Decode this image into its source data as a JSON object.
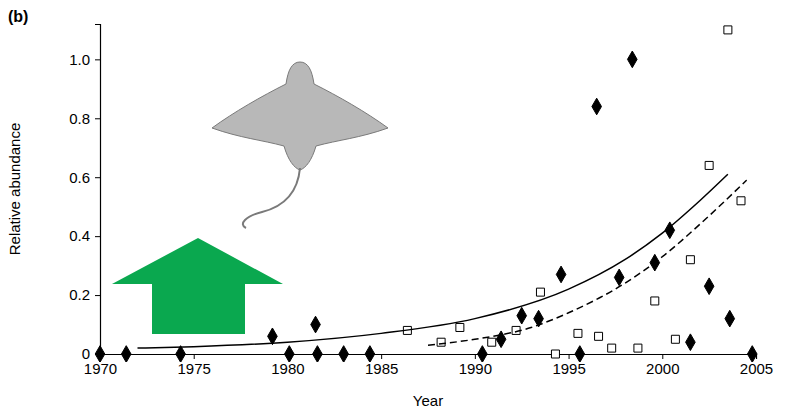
{
  "chart_data": {
    "type": "scatter",
    "panel_label": "(b)",
    "x_label": "Year",
    "y_label": "Relative abundance",
    "xlim": [
      1970,
      2005
    ],
    "xticks": [
      1970,
      1975,
      1980,
      1985,
      1990,
      1995,
      2000,
      2005
    ],
    "ylim": [
      0,
      1.12
    ],
    "yticks": [
      0,
      0.2,
      0.4,
      0.6,
      0.8,
      {
        "value": 1,
        "label": "1.0"
      }
    ],
    "series": [
      {
        "type": "scatter",
        "marker": "diamond",
        "color": "#000000",
        "x": [
          1970,
          1971.4,
          1974.3,
          1979.2,
          1980.1,
          1981.5,
          1981.6,
          1983,
          1984.4,
          1990.4,
          1991.4,
          1992.5,
          1993.4,
          1994.6,
          1995.6,
          1996.5,
          1997.7,
          1998.4,
          1999.6,
          2000.4,
          2001.5,
          2002.5,
          2003.6,
          2004.8
        ],
        "values": [
          0,
          0,
          0,
          0.06,
          0,
          0.1,
          0,
          0,
          0,
          0,
          0.05,
          0.13,
          0.12,
          0.27,
          0,
          0.84,
          0.26,
          1.0,
          0.31,
          0.42,
          0.04,
          0.23,
          0.12,
          0
        ]
      },
      {
        "type": "scatter",
        "marker": "open-square",
        "color": "#000000",
        "x": [
          1986.4,
          1988.2,
          1989.2,
          1990.9,
          1992.2,
          1993.5,
          1994.3,
          1995.5,
          1996.6,
          1997.3,
          1998.7,
          1999.6,
          2000.7,
          2001.5,
          2002.5,
          2003.5,
          2004.2
        ],
        "values": [
          0.08,
          0.04,
          0.09,
          0.04,
          0.08,
          0.21,
          0,
          0.07,
          0.06,
          0.02,
          0.02,
          0.18,
          0.05,
          0.32,
          0.64,
          1.1,
          0.52
        ]
      },
      {
        "type": "line",
        "line_style": "solid",
        "color": "#000000",
        "x": [
          1972,
          1975,
          1980,
          1985,
          1990,
          1995,
          1998,
          2000,
          2002,
          2003.5
        ],
        "values": [
          0.02,
          0.025,
          0.04,
          0.07,
          0.12,
          0.22,
          0.32,
          0.41,
          0.52,
          0.61
        ]
      },
      {
        "type": "line",
        "line_style": "dashed",
        "color": "#000000",
        "x": [
          1987.5,
          1990,
          1993,
          1995,
          1998,
          2000,
          2002,
          2004.5
        ],
        "values": [
          0.03,
          0.05,
          0.09,
          0.14,
          0.24,
          0.33,
          0.44,
          0.59
        ]
      }
    ]
  }
}
